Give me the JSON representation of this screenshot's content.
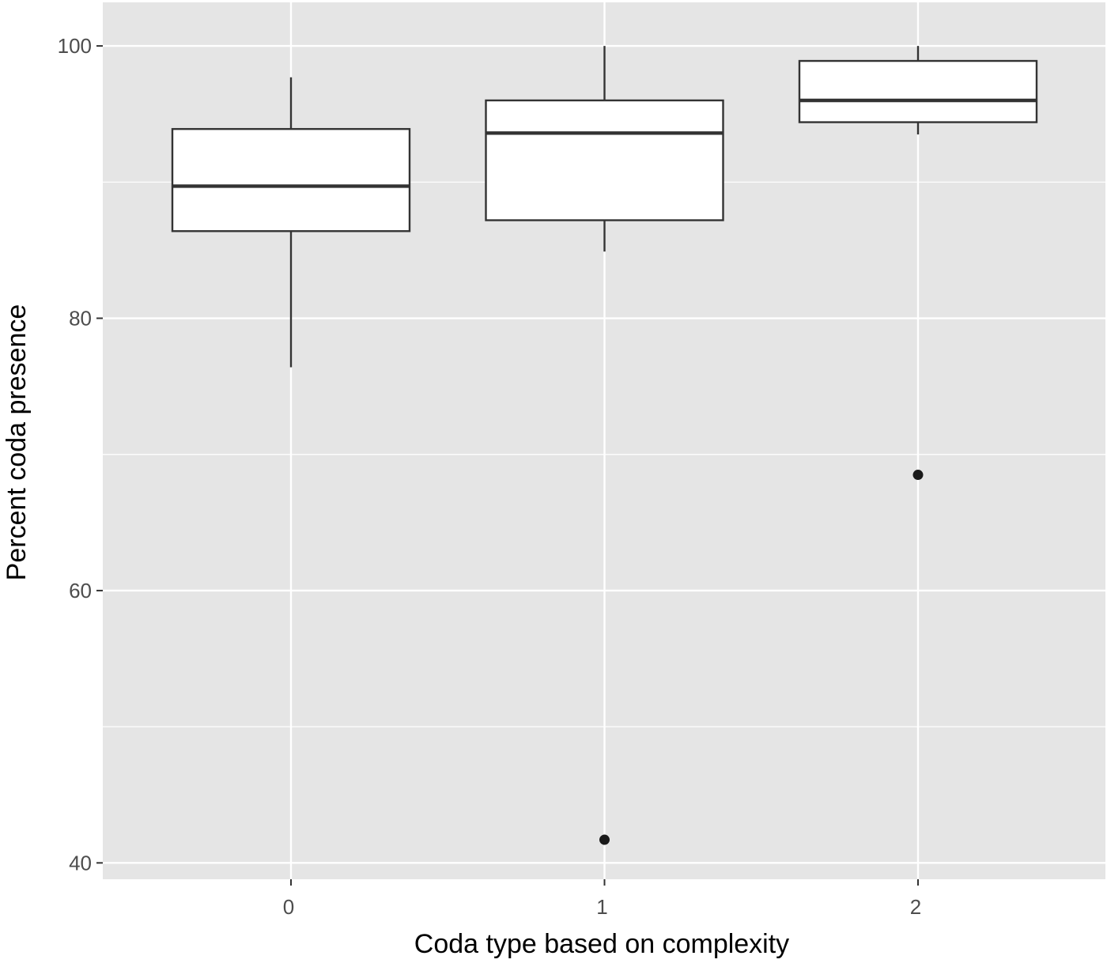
{
  "chart_data": {
    "type": "boxplot",
    "title": "",
    "xlabel": "Coda type based on complexity",
    "ylabel": "Percent coda presence",
    "categories": [
      "0",
      "1",
      "2"
    ],
    "ylim": [
      38.8,
      103.2
    ],
    "yticks": [
      40,
      60,
      80,
      100
    ],
    "ytick_labels": [
      "40",
      "60",
      "80",
      "100"
    ],
    "y_minor_gridlines": [
      50,
      70,
      90
    ],
    "grid": true,
    "legend": "none",
    "boxes": [
      {
        "category": "0",
        "whisker_low": 76.4,
        "q1": 86.4,
        "median": 89.7,
        "q3": 93.9,
        "whisker_high": 97.7,
        "outliers": []
      },
      {
        "category": "1",
        "whisker_low": 84.9,
        "q1": 87.2,
        "median": 93.6,
        "q3": 96.0,
        "whisker_high": 100.0,
        "outliers": [
          41.7
        ]
      },
      {
        "category": "2",
        "whisker_low": 93.5,
        "q1": 94.4,
        "median": 96.0,
        "q3": 98.9,
        "whisker_high": 100.0,
        "outliers": [
          68.5
        ]
      }
    ],
    "colors": {
      "panel_background": "#e5e5e5",
      "grid": "#ffffff",
      "box_fill": "#ffffff",
      "box_stroke": "#333333",
      "outlier": "#1a1a1a",
      "tick_text": "#4d4d4d",
      "title_text": "#000000"
    }
  }
}
